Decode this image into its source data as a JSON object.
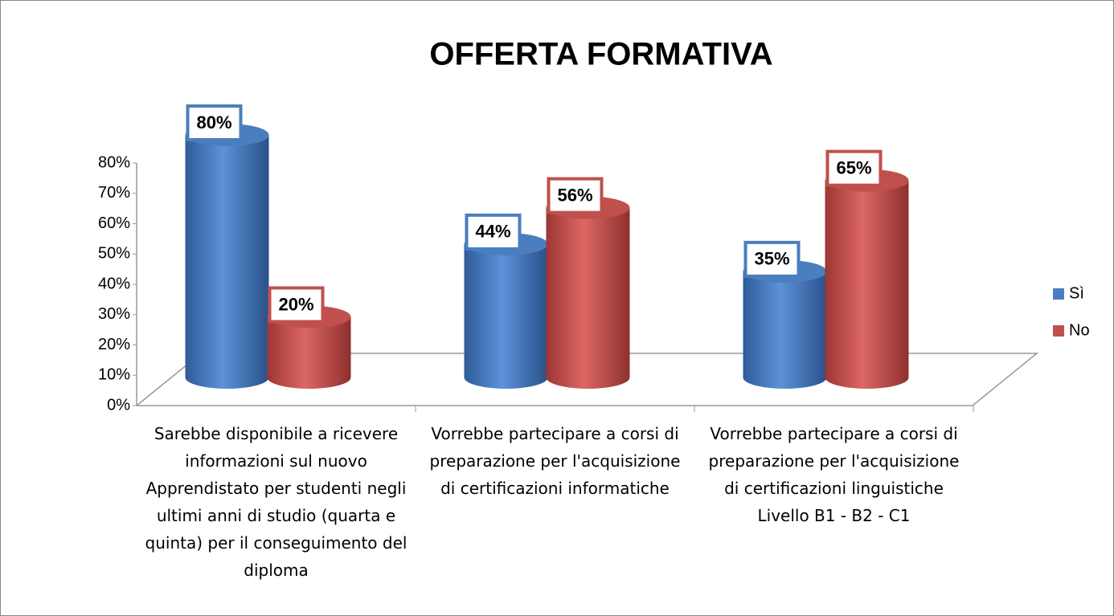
{
  "chart_data": {
    "type": "bar3d",
    "title": "OFFERTA FORMATIVA",
    "categories": [
      "Sarebbe disponibile a ricevere informazioni sul nuovo Apprendistato per studenti negli ultimi anni di studio (quarta e quinta) per il conseguimento del diploma",
      "Vorrebbe partecipare a corsi di preparazione per l'acquisizione di certificazioni informatiche",
      "Vorrebbe partecipare a corsi di preparazione per l'acquisizione di certificazioni linguistiche Livello B1 - B2 - C1"
    ],
    "series": [
      {
        "name": "Sì",
        "color": "#4a7ebf",
        "values": [
          80,
          44,
          35
        ],
        "value_labels": [
          "80%",
          "44%",
          "35%"
        ]
      },
      {
        "name": "No",
        "color": "#c0504d",
        "values": [
          20,
          56,
          65
        ],
        "value_labels": [
          "20%",
          "56%",
          "65%"
        ]
      }
    ],
    "ylim": [
      0,
      80
    ],
    "yticks": [
      {
        "value": 0,
        "label": "0%"
      },
      {
        "value": 10,
        "label": "10%"
      },
      {
        "value": 20,
        "label": "20%"
      },
      {
        "value": 30,
        "label": "30%"
      },
      {
        "value": 40,
        "label": "40%"
      },
      {
        "value": 50,
        "label": "50%"
      },
      {
        "value": 60,
        "label": "60%"
      },
      {
        "value": 70,
        "label": "70%"
      },
      {
        "value": 80,
        "label": "80%"
      }
    ],
    "legend": "right"
  }
}
